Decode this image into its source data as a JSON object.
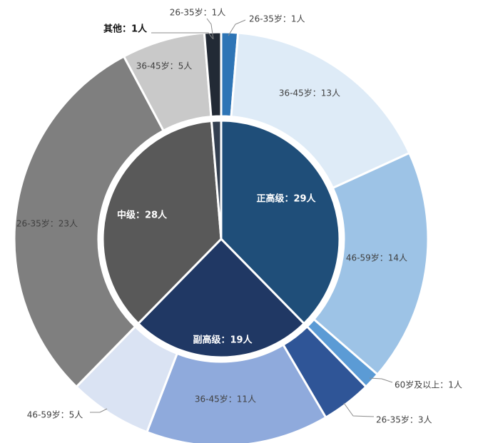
{
  "chart_data": {
    "type": "pie",
    "subtype": "nested-donut",
    "title": "",
    "legend": "none",
    "inner": [
      {
        "label": "正高级：29人",
        "name": "正高级",
        "value": 29,
        "color": "#1F4E79"
      },
      {
        "label": "副高级：19人",
        "name": "副高级",
        "value": 19,
        "color": "#203864"
      },
      {
        "label": "中级：28人",
        "name": "中级",
        "value": 28,
        "color": "#595959"
      },
      {
        "label": "其他：1人",
        "name": "其他",
        "value": 1,
        "color": "#333F50"
      }
    ],
    "outer": [
      {
        "label": "26-35岁：1人",
        "parent": "正高级",
        "value": 1,
        "color": "#2E75B6"
      },
      {
        "label": "36-45岁：13人",
        "parent": "正高级",
        "value": 13,
        "color": "#DEEBF7"
      },
      {
        "label": "46-59岁：14人",
        "parent": "正高级",
        "value": 14,
        "color": "#9DC3E6"
      },
      {
        "label": "60岁及以上：1人",
        "parent": "正高级",
        "value": 1,
        "color": "#5B9BD5"
      },
      {
        "label": "26-35岁：3人",
        "parent": "副高级",
        "value": 3,
        "color": "#2F5597"
      },
      {
        "label": "36-45岁：11人",
        "parent": "副高级",
        "value": 11,
        "color": "#8FAADC"
      },
      {
        "label": "46-59岁：5人",
        "parent": "副高级",
        "value": 5,
        "color": "#DAE3F3"
      },
      {
        "label": "26-35岁：23人",
        "parent": "中级",
        "value": 23,
        "color": "#7F7F7F"
      },
      {
        "label": "36-45岁：5人",
        "parent": "中级",
        "value": 5,
        "color": "#C9C9C9"
      },
      {
        "label": "26-35岁：1人",
        "parent": "其他",
        "value": 1,
        "color": "#222A35"
      }
    ]
  }
}
